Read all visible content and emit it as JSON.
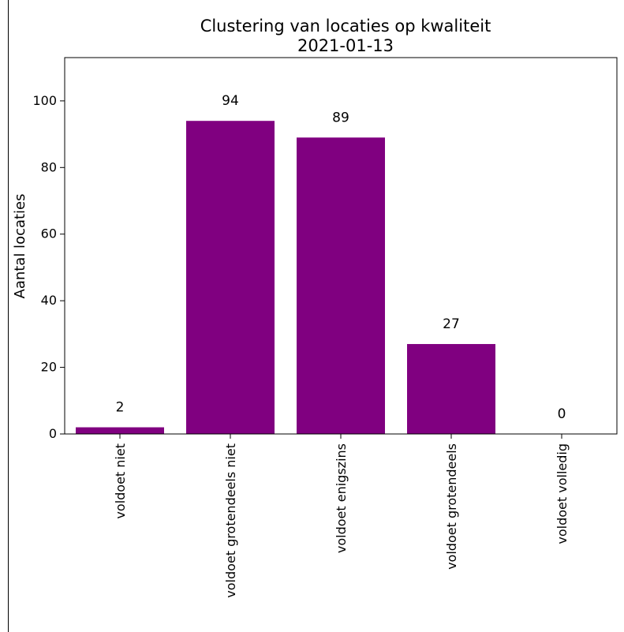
{
  "chart_data": {
    "type": "bar",
    "title": "Clustering van locaties op kwaliteit",
    "subtitle": "2021-01-13",
    "xlabel": "",
    "ylabel": "Aantal locaties",
    "categories": [
      "voldoet niet",
      "voldoet grotendeels niet",
      "voldoet enigszins",
      "voldoet grotendeels",
      "voldoet volledig"
    ],
    "values": [
      2,
      94,
      89,
      27,
      0
    ],
    "ylim": [
      0,
      113
    ],
    "yticks": [
      0,
      20,
      40,
      60,
      80,
      100
    ],
    "bar_color": "#800080",
    "grid": false,
    "legend": "none"
  }
}
